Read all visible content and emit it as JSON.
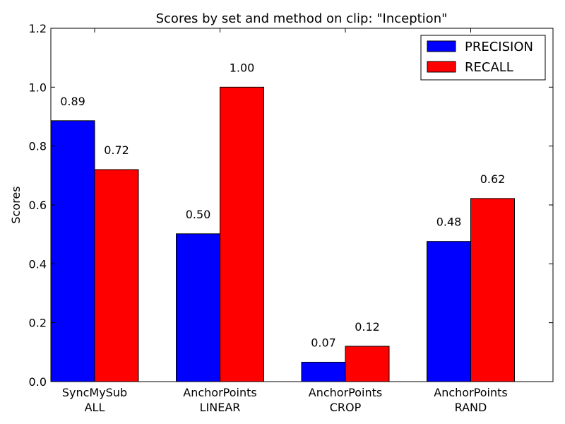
{
  "chart_data": {
    "type": "bar",
    "title": "Scores by set and method on clip: \"Inception\"",
    "xlabel": "",
    "ylabel": "Scores",
    "ylim": [
      0,
      1.2
    ],
    "yticks": [
      "0.0",
      "0.2",
      "0.4",
      "0.6",
      "0.8",
      "1.0",
      "1.2"
    ],
    "categories": [
      [
        "SyncMySub",
        "ALL"
      ],
      [
        "AnchorPoints",
        "LINEAR"
      ],
      [
        "AnchorPoints",
        "CROP"
      ],
      [
        "AnchorPoints",
        "RAND"
      ]
    ],
    "series": [
      {
        "name": "PRECISION",
        "color": "#0000ff",
        "values": [
          0.886,
          0.502,
          0.066,
          0.476
        ],
        "labels": [
          "0.89",
          "0.50",
          "0.07",
          "0.48"
        ]
      },
      {
        "name": "RECALL",
        "color": "#ff0000",
        "values": [
          0.72,
          1.0,
          0.12,
          0.622
        ],
        "labels": [
          "0.72",
          "1.00",
          "0.12",
          "0.62"
        ]
      }
    ],
    "legend": "top-right",
    "grid": false
  }
}
